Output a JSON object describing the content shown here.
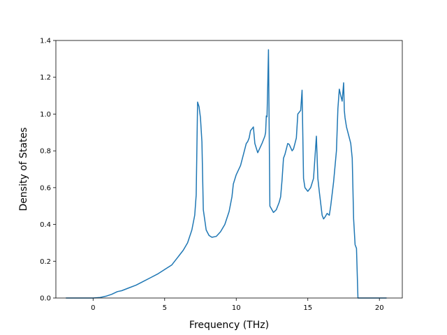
{
  "chart_data": {
    "type": "line",
    "title": "",
    "xlabel": "Frequency (THz)",
    "ylabel": "Density of States",
    "xlim": [
      -2.6,
      21.6
    ],
    "ylim": [
      0,
      1.4
    ],
    "grid": false,
    "x_ticks": [
      0,
      5,
      10,
      15,
      20
    ],
    "x_tick_labels": [
      "0",
      "5",
      "10",
      "15",
      "20"
    ],
    "y_ticks": [
      0.0,
      0.2,
      0.4,
      0.6,
      0.8,
      1.0,
      1.2,
      1.4
    ],
    "y_tick_labels": [
      "0.0",
      "0.2",
      "0.4",
      "0.6",
      "0.8",
      "1.0",
      "1.2",
      "1.4"
    ],
    "series": [
      {
        "color": "#1f77b4",
        "x": [
          -1.9,
          -1.0,
          0.0,
          0.5,
          0.9,
          1.3,
          1.7,
          2.0,
          2.5,
          3.0,
          3.5,
          4.0,
          4.5,
          5.0,
          5.5,
          5.7,
          6.0,
          6.3,
          6.6,
          6.9,
          7.1,
          7.2,
          7.3,
          7.4,
          7.5,
          7.6,
          7.7,
          7.9,
          8.1,
          8.3,
          8.6,
          8.9,
          9.2,
          9.5,
          9.7,
          9.8,
          10.0,
          10.3,
          10.5,
          10.7,
          10.8,
          10.9,
          11.0,
          11.2,
          11.3,
          11.5,
          11.8,
          12.0,
          12.05,
          12.1,
          12.15,
          12.2,
          12.25,
          12.35,
          12.6,
          12.8,
          13.0,
          13.1,
          13.2,
          13.3,
          13.4,
          13.6,
          13.7,
          13.9,
          14.0,
          14.1,
          14.2,
          14.3,
          14.5,
          14.6,
          14.7,
          14.8,
          15.0,
          15.2,
          15.4,
          15.6,
          15.7,
          15.8,
          16.0,
          16.1,
          16.2,
          16.35,
          16.5,
          16.6,
          16.8,
          17.0,
          17.1,
          17.2,
          17.3,
          17.4,
          17.5,
          17.55,
          17.6,
          17.7,
          17.9,
          18.0,
          18.1,
          18.2,
          18.3,
          18.4,
          18.5,
          18.6,
          18.7,
          18.8,
          19.0,
          19.5,
          20.0,
          20.5
        ],
        "y": [
          0.0,
          0.0,
          0.0,
          0.003,
          0.01,
          0.02,
          0.035,
          0.04,
          0.055,
          0.07,
          0.09,
          0.11,
          0.13,
          0.155,
          0.18,
          0.2,
          0.23,
          0.26,
          0.3,
          0.37,
          0.45,
          0.56,
          1.065,
          1.04,
          0.98,
          0.85,
          0.48,
          0.37,
          0.34,
          0.33,
          0.335,
          0.36,
          0.4,
          0.47,
          0.55,
          0.62,
          0.67,
          0.72,
          0.78,
          0.84,
          0.85,
          0.87,
          0.91,
          0.93,
          0.84,
          0.79,
          0.84,
          0.88,
          0.9,
          0.99,
          0.985,
          1.15,
          1.35,
          0.5,
          0.465,
          0.48,
          0.52,
          0.55,
          0.64,
          0.76,
          0.78,
          0.84,
          0.835,
          0.8,
          0.81,
          0.84,
          0.87,
          1.0,
          1.02,
          1.13,
          0.65,
          0.6,
          0.58,
          0.6,
          0.65,
          0.88,
          0.65,
          0.58,
          0.45,
          0.43,
          0.44,
          0.46,
          0.45,
          0.5,
          0.63,
          0.8,
          1.03,
          1.135,
          1.1,
          1.07,
          1.17,
          1.02,
          0.98,
          0.93,
          0.87,
          0.84,
          0.76,
          0.43,
          0.29,
          0.27,
          0.0,
          0.0,
          0.0,
          0.0,
          0.0,
          0.0,
          0.0,
          0.0
        ]
      }
    ]
  }
}
